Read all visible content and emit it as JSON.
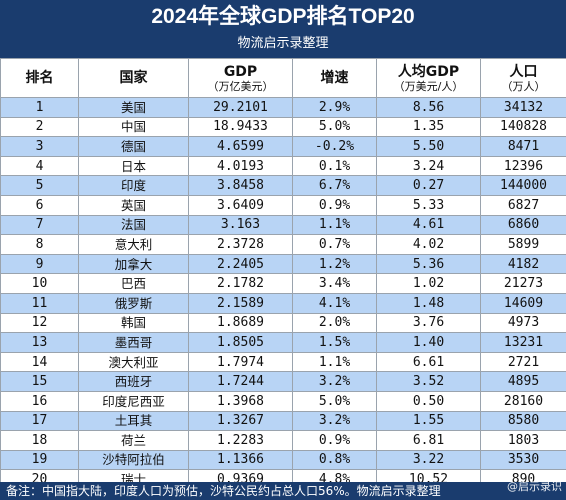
{
  "header": {
    "title": "2024年全球GDP排名TOP20",
    "subtitle": "物流启示录整理"
  },
  "columns": [
    {
      "label": "排名",
      "sub": ""
    },
    {
      "label": "国家",
      "sub": ""
    },
    {
      "label": "GDP",
      "sub": "（万亿美元）"
    },
    {
      "label": "增速",
      "sub": ""
    },
    {
      "label": "人均GDP",
      "sub": "（万美元/人）"
    },
    {
      "label": "人口",
      "sub": "（万人）"
    }
  ],
  "rows": [
    {
      "rank": "1",
      "country": "美国",
      "gdp": "29.2101",
      "growth": "2.9%",
      "gdp_per_capita": "8.56",
      "population": "34132"
    },
    {
      "rank": "2",
      "country": "中国",
      "gdp": "18.9433",
      "growth": "5.0%",
      "gdp_per_capita": "1.35",
      "population": "140828"
    },
    {
      "rank": "3",
      "country": "德国",
      "gdp": "4.6599",
      "growth": "-0.2%",
      "gdp_per_capita": "5.50",
      "population": "8471"
    },
    {
      "rank": "4",
      "country": "日本",
      "gdp": "4.0193",
      "growth": "0.1%",
      "gdp_per_capita": "3.24",
      "population": "12396"
    },
    {
      "rank": "5",
      "country": "印度",
      "gdp": "3.8458",
      "growth": "6.7%",
      "gdp_per_capita": "0.27",
      "population": "144000"
    },
    {
      "rank": "6",
      "country": "英国",
      "gdp": "3.6409",
      "growth": "0.9%",
      "gdp_per_capita": "5.33",
      "population": "6827"
    },
    {
      "rank": "7",
      "country": "法国",
      "gdp": "3.163",
      "growth": "1.1%",
      "gdp_per_capita": "4.61",
      "population": "6860"
    },
    {
      "rank": "8",
      "country": "意大利",
      "gdp": "2.3728",
      "growth": "0.7%",
      "gdp_per_capita": "4.02",
      "population": "5899"
    },
    {
      "rank": "9",
      "country": "加拿大",
      "gdp": "2.2405",
      "growth": "1.2%",
      "gdp_per_capita": "5.36",
      "population": "4182"
    },
    {
      "rank": "10",
      "country": "巴西",
      "gdp": "2.1782",
      "growth": "3.4%",
      "gdp_per_capita": "1.02",
      "population": "21273"
    },
    {
      "rank": "11",
      "country": "俄罗斯",
      "gdp": "2.1589",
      "growth": "4.1%",
      "gdp_per_capita": "1.48",
      "population": "14609"
    },
    {
      "rank": "12",
      "country": "韩国",
      "gdp": "1.8689",
      "growth": "2.0%",
      "gdp_per_capita": "3.76",
      "population": "4973"
    },
    {
      "rank": "13",
      "country": "墨西哥",
      "gdp": "1.8505",
      "growth": "1.5%",
      "gdp_per_capita": "1.40",
      "population": "13231"
    },
    {
      "rank": "14",
      "country": "澳大利亚",
      "gdp": "1.7974",
      "growth": "1.1%",
      "gdp_per_capita": "6.61",
      "population": "2721"
    },
    {
      "rank": "15",
      "country": "西班牙",
      "gdp": "1.7244",
      "growth": "3.2%",
      "gdp_per_capita": "3.52",
      "population": "4895"
    },
    {
      "rank": "16",
      "country": "印度尼西亚",
      "gdp": "1.3968",
      "growth": "5.0%",
      "gdp_per_capita": "0.50",
      "population": "28160"
    },
    {
      "rank": "17",
      "country": "土耳其",
      "gdp": "1.3267",
      "growth": "3.2%",
      "gdp_per_capita": "1.55",
      "population": "8580"
    },
    {
      "rank": "18",
      "country": "荷兰",
      "gdp": "1.2283",
      "growth": "0.9%",
      "gdp_per_capita": "6.81",
      "population": "1803"
    },
    {
      "rank": "19",
      "country": "沙特阿拉伯",
      "gdp": "1.1366",
      "growth": "0.8%",
      "gdp_per_capita": "3.22",
      "population": "3530"
    },
    {
      "rank": "20",
      "country": "瑞士",
      "gdp": "0.9369",
      "growth": "4.8%",
      "gdp_per_capita": "10.52",
      "population": "890"
    }
  ],
  "footer": {
    "note": "备注：中国指大陆，印度人口为预估，沙特公民约占总人口56%。物流启示录整理",
    "watermark": "@启示录识"
  },
  "colors": {
    "header_bg": "#1a3c6e",
    "row_alt_bg": "#b8d4f5",
    "border": "#9aa3ad"
  }
}
